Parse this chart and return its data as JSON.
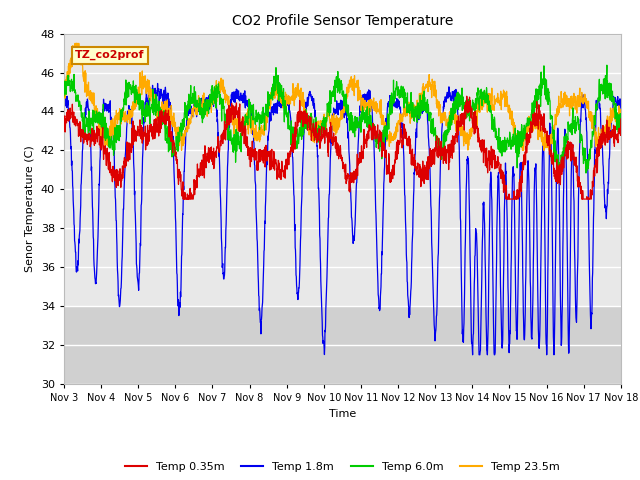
{
  "title": "CO2 Profile Sensor Temperature",
  "ylabel": "Senor Temperature (C)",
  "xlabel": "Time",
  "ylim": [
    30,
    48
  ],
  "yticks": [
    30,
    32,
    34,
    36,
    38,
    40,
    42,
    44,
    46,
    48
  ],
  "xlim": [
    0,
    15
  ],
  "xtick_labels": [
    "Nov 3",
    "Nov 4",
    "Nov 5",
    "Nov 6",
    "Nov 7",
    "Nov 8",
    "Nov 9",
    "Nov 10",
    "Nov 11",
    "Nov 12",
    "Nov 13",
    "Nov 14",
    "Nov 15",
    "Nov 16",
    "Nov 17",
    "Nov 18"
  ],
  "colors": {
    "red": "#dd0000",
    "blue": "#0000ee",
    "green": "#00cc00",
    "orange": "#ffaa00"
  },
  "legend_labels": [
    "Temp 0.35m",
    "Temp 1.8m",
    "Temp 6.0m",
    "Temp 23.5m"
  ],
  "annotation_text": "TZ_co2prof",
  "annotation_box_color": "#ffffcc",
  "annotation_border_color": "#cc8800",
  "annotation_text_color": "#cc0000",
  "plot_bg_color": "#e8e8e8",
  "upper_band_color": "#d8d8d8",
  "lower_band_color": "#d0d0d0",
  "grid_color": "#ffffff",
  "fig_bg_color": "#ffffff",
  "n_points": 2000
}
